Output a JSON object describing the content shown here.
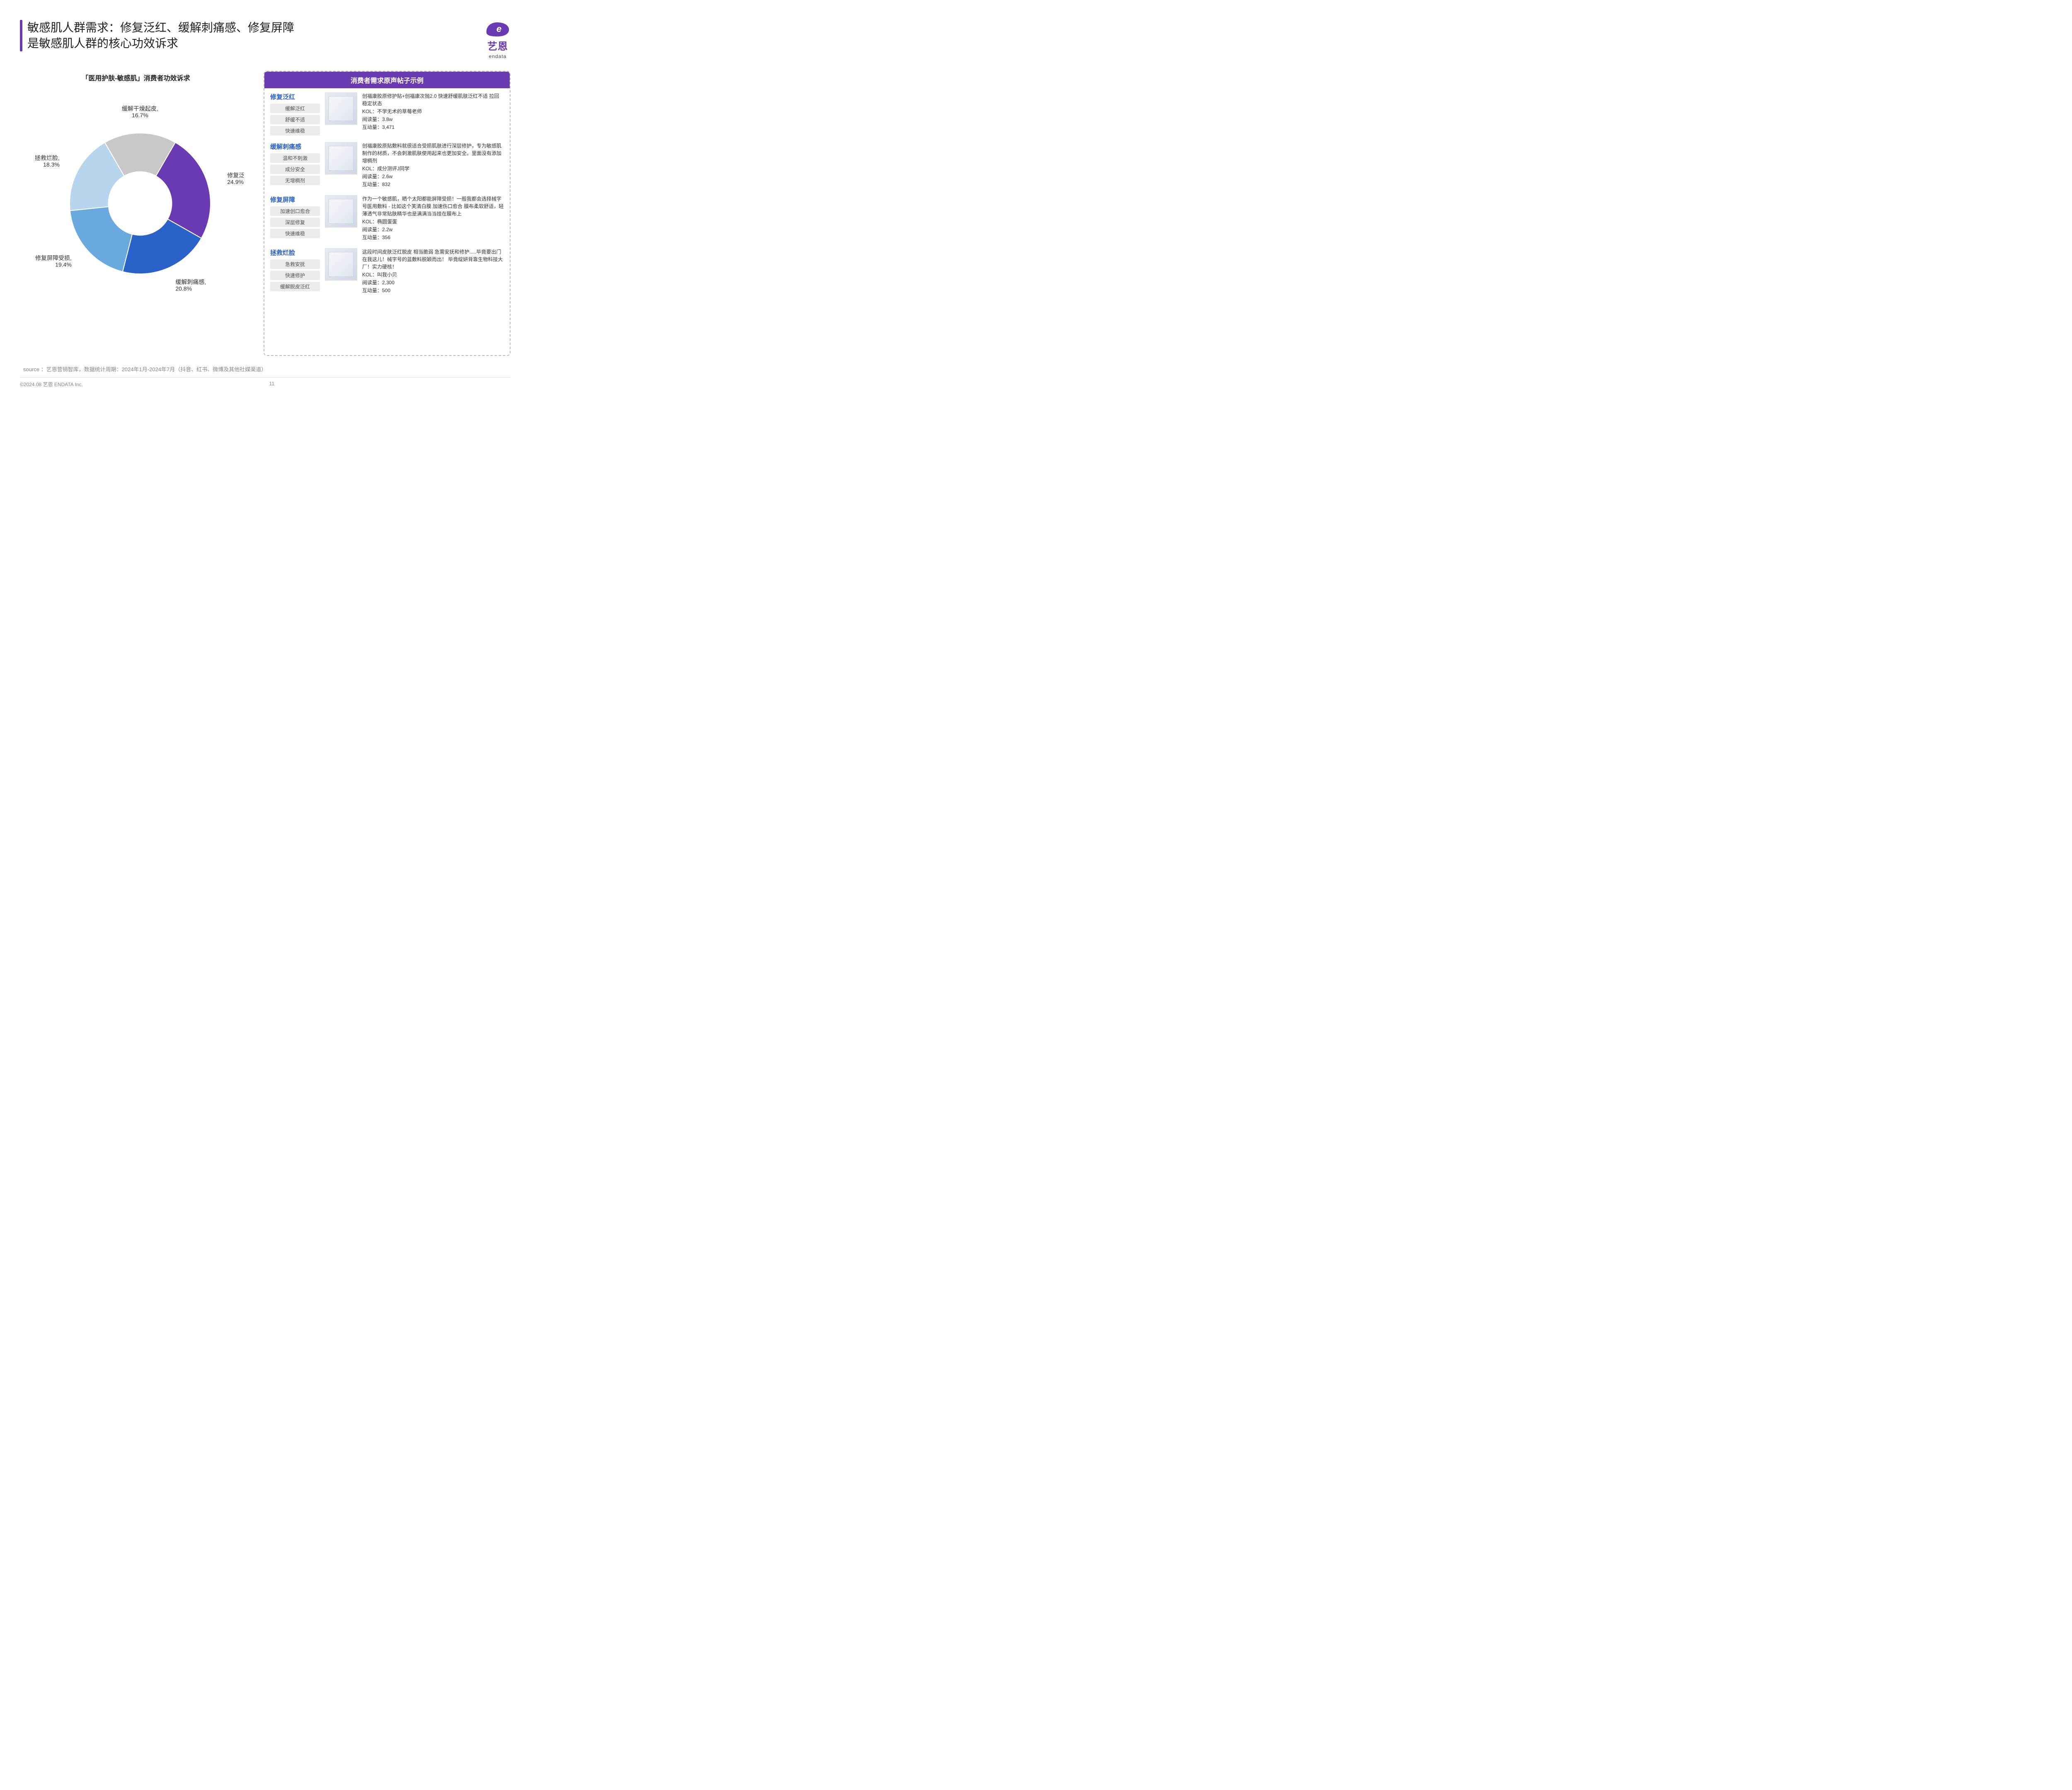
{
  "header": {
    "title_line1": "敏感肌人群需求：修复泛红、缓解刺痛感、修复屏障",
    "title_line2": "是敏感肌人群的核心功效诉求",
    "accent_color": "#6a3ab2",
    "logo_brand_cn": "艺恩",
    "logo_brand_en": "endata"
  },
  "donut": {
    "title": "「医用护肤-敏感肌」消费者功效诉求",
    "type": "donut",
    "inner_radius_ratio": 0.45,
    "background_color": "#ffffff",
    "label_fontsize": 14,
    "label_color": "#333333",
    "slices": [
      {
        "label": "修复泛红",
        "value": 24.9,
        "color": "#6a3ab2",
        "display": "修复泛红,\n24.9%"
      },
      {
        "label": "缓解刺痛感",
        "value": 20.8,
        "color": "#2a62c9",
        "display": "缓解刺痛感,\n20.8%"
      },
      {
        "label": "修复屏障受损",
        "value": 19.4,
        "color": "#6aa9de",
        "display": "修复屏障受损,\n19.4%"
      },
      {
        "label": "拯救烂脸",
        "value": 18.3,
        "color": "#b7d6ee",
        "display": "拯救烂脸,\n18.3%"
      },
      {
        "label": "缓解干燥起皮",
        "value": 16.7,
        "color": "#c8c8c8",
        "display": "缓解干燥起皮,\n16.7%"
      }
    ],
    "start_angle_deg": -60
  },
  "right_panel": {
    "header": "消费者需求原声帖子示例",
    "header_bg": "#6a3ab2",
    "category_color": "#2a62c9",
    "tag_bg": "#ececec",
    "examples": [
      {
        "category": "修复泛红",
        "tags": [
          "缓解泛红",
          "舒缓不适",
          "快速维稳"
        ],
        "body": "创福康胶原修护贴+创福康次抛2.0 快速舒缓肌肤泛红不适 拉回稳定状态",
        "kol": "KOL：不学无术的草莓老师",
        "reads_label": "阅读量：",
        "reads": "3.8w",
        "inter_label": "互动量：",
        "inter": "3,471"
      },
      {
        "category": "缓解刺痛感",
        "tags": [
          "温和不刺激",
          "成分安全",
          "无增稠剂"
        ],
        "body": "创福康胶原贴敷料就很适合受损肌肤进行深层修护，专为敏感肌制作的材质，不会刺激肌肤使用起来也更加安全。里面没有添加增稠剂",
        "kol": "KOL：成分测评J同学",
        "reads_label": "阅读量：",
        "reads": "2.6w",
        "inter_label": "互动量：",
        "inter": "832"
      },
      {
        "category": "修复屏障",
        "tags": [
          "加速创口愈合",
          "深层修复",
          "快速维稳"
        ],
        "body": "作为一个敏感肌，晒个太阳都能屏障受损！一般我都会选择械字号医用敷料 - 比如这个芙清白膜 加速伤口愈合 膜布柔软舒适，轻薄透气非常贴肤精华也是满满当当挂在膜布上",
        "kol": "KOL：椭圆蛋蛋",
        "reads_label": "阅读量：",
        "reads": "2.2w",
        "inter_label": "互动量：",
        "inter": "356"
      },
      {
        "category": "拯救烂脸",
        "tags": [
          "急救安抚",
          "快速修护",
          "缓解脱皮泛红"
        ],
        "body": "这段时间皮肤泛红脱皮 相当脆弱 急需安抚和修护.....毕竟要出门 在我这儿！械字号的蓝敷料脱颖而出！ 毕竟绽妍背靠生物科技大厂！实力硬核！",
        "kol": "KOL：叫我小贝",
        "reads_label": "阅读量：",
        "reads": "2,300",
        "inter_label": "互动量：",
        "inter": "500"
      }
    ]
  },
  "source": "source ：艺恩营销智库，数据统计周期：2024年1月-2024年7月（抖音、红书、微博及其他社媒渠道）",
  "footer": {
    "copyright": "©2024.08  艺恩 ENDATA Inc.",
    "page": "11"
  }
}
